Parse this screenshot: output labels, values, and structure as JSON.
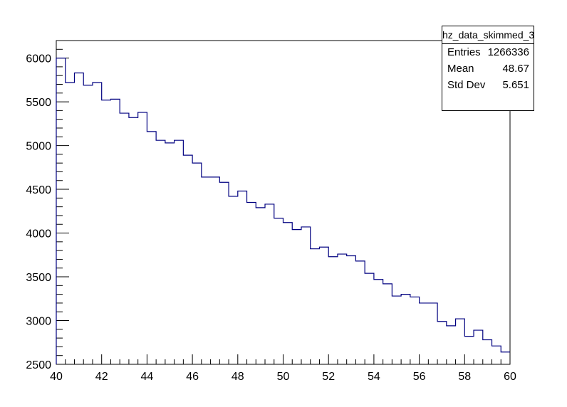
{
  "chart_data": {
    "type": "histogram",
    "title": "",
    "xlabel": "",
    "ylabel": "",
    "xlim": [
      40,
      60
    ],
    "ylim": [
      2500,
      6200
    ],
    "bin_edges_start": 40,
    "bin_width": 0.4,
    "values": [
      6000,
      5720,
      5830,
      5690,
      5720,
      5520,
      5530,
      5370,
      5320,
      5380,
      5160,
      5060,
      5030,
      5060,
      4890,
      4800,
      4640,
      4640,
      4580,
      4420,
      4480,
      4350,
      4290,
      4330,
      4170,
      4120,
      4040,
      4070,
      3820,
      3840,
      3730,
      3760,
      3740,
      3680,
      3540,
      3470,
      3420,
      3280,
      3300,
      3270,
      3200,
      3200,
      2990,
      2940,
      3020,
      2820,
      2890,
      2780,
      2710,
      2640
    ],
    "x_ticks": [
      "40",
      "42",
      "44",
      "46",
      "48",
      "50",
      "52",
      "54",
      "56",
      "58",
      "60"
    ],
    "y_ticks": [
      "2500",
      "3000",
      "3500",
      "4000",
      "4500",
      "5000",
      "5500",
      "6000"
    ],
    "grid": false,
    "line_color": "#000080",
    "stats": {
      "name": "hz_data_skimmed_3",
      "entries_label": "Entries",
      "entries_value": "1266336",
      "mean_label": "Mean",
      "mean_value": "48.67",
      "stddev_label": "Std Dev",
      "stddev_value": "5.651"
    }
  }
}
